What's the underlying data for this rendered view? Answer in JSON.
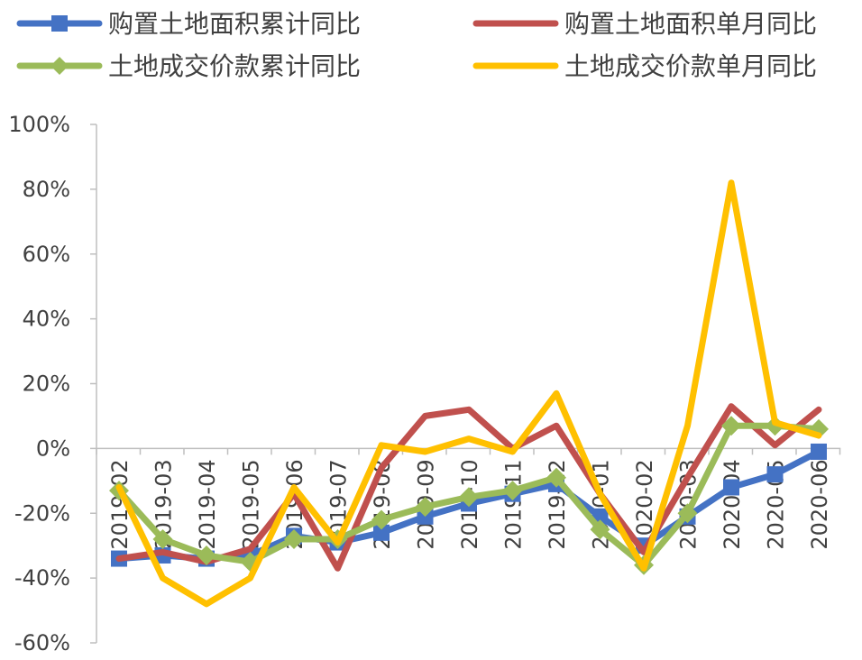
{
  "chart_data": {
    "type": "line",
    "title": "",
    "xlabel": "",
    "ylabel": "",
    "ylim": [
      -60,
      100
    ],
    "y_ticks": [
      "100%",
      "80%",
      "60%",
      "40%",
      "20%",
      "0%",
      "-20%",
      "-40%",
      "-60%"
    ],
    "y_tick_values": [
      100,
      80,
      60,
      40,
      20,
      0,
      -20,
      -40,
      -60
    ],
    "legend_position": "top",
    "grid": false,
    "categories": [
      "2019-02",
      "2019-03",
      "2019-04",
      "2019-05",
      "2019-06",
      "2019-07",
      "2019-08",
      "2019-09",
      "2019-10",
      "2019-11",
      "2019-12",
      "2020-01",
      "2020-02",
      "2020-03",
      "2020-04",
      "2020-05",
      "2020-06"
    ],
    "series": [
      {
        "name": "购置土地面积累计同比",
        "color": "#4472C4",
        "marker": "square",
        "values": [
          -34,
          -33,
          -34,
          -33,
          -27,
          -29,
          -26,
          -21,
          -17,
          -14,
          -11,
          -21,
          -30,
          -21,
          -12,
          -8,
          -1
        ]
      },
      {
        "name": "购置土地面积单月同比",
        "color": "#C0504D",
        "marker": "none",
        "values": [
          -34,
          -32,
          -35,
          -31,
          -14,
          -37,
          -6,
          10,
          12,
          0,
          7,
          -14,
          -32,
          -9,
          13,
          1,
          12
        ]
      },
      {
        "name": "土地成交价款累计同比",
        "color": "#9BBB59",
        "marker": "diamond",
        "values": [
          -13,
          -28,
          -33,
          -35,
          -28,
          -28,
          -22,
          -18,
          -15,
          -13,
          -9,
          -25,
          -36,
          -20,
          7,
          7,
          6
        ]
      },
      {
        "name": "土地成交价款单月同比",
        "color": "#FFC000",
        "marker": "none",
        "values": [
          -12,
          -40,
          -48,
          -40,
          -12,
          -29,
          1,
          -1,
          3,
          -1,
          17,
          -14,
          -37,
          7,
          82,
          8,
          4
        ]
      }
    ]
  }
}
